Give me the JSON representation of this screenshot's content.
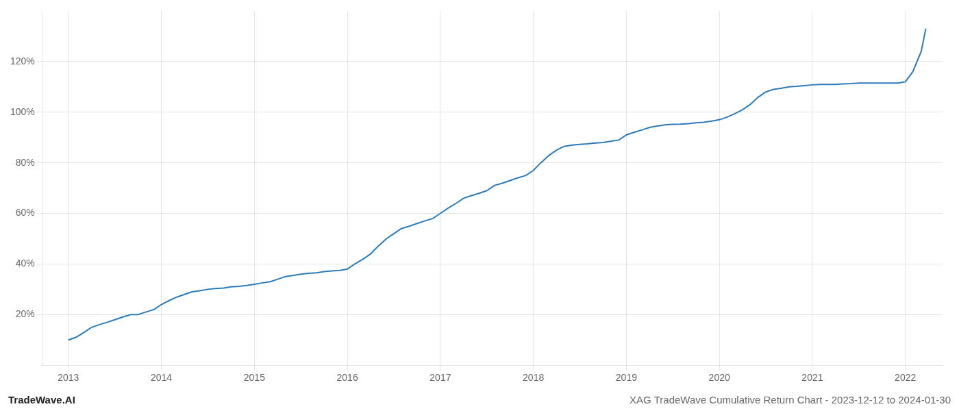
{
  "chart_data": {
    "type": "line",
    "title": "XAG TradeWave Cumulative Return Chart - 2023-12-12 to 2024-01-30",
    "annotations": [
      "TradeWave.AI"
    ],
    "x": [
      2013.0,
      2013.08,
      2013.17,
      2013.25,
      2013.33,
      2013.42,
      2013.5,
      2013.58,
      2013.67,
      2013.75,
      2013.83,
      2013.92,
      2014.0,
      2014.08,
      2014.17,
      2014.25,
      2014.33,
      2014.42,
      2014.5,
      2014.58,
      2014.67,
      2014.75,
      2014.83,
      2014.92,
      2015.0,
      2015.08,
      2015.17,
      2015.25,
      2015.33,
      2015.42,
      2015.5,
      2015.58,
      2015.67,
      2015.75,
      2015.83,
      2015.92,
      2016.0,
      2016.08,
      2016.17,
      2016.25,
      2016.33,
      2016.42,
      2016.5,
      2016.58,
      2016.67,
      2016.75,
      2016.83,
      2016.92,
      2017.0,
      2017.08,
      2017.17,
      2017.25,
      2017.33,
      2017.42,
      2017.5,
      2017.58,
      2017.67,
      2017.75,
      2017.83,
      2017.92,
      2018.0,
      2018.08,
      2018.17,
      2018.25,
      2018.33,
      2018.42,
      2018.5,
      2018.58,
      2018.67,
      2018.75,
      2018.83,
      2018.92,
      2019.0,
      2019.08,
      2019.17,
      2019.25,
      2019.33,
      2019.42,
      2019.5,
      2019.58,
      2019.67,
      2019.75,
      2019.83,
      2019.92,
      2020.0,
      2020.08,
      2020.17,
      2020.25,
      2020.33,
      2020.42,
      2020.5,
      2020.58,
      2020.67,
      2020.75,
      2020.83,
      2020.92,
      2021.0,
      2021.08,
      2021.17,
      2021.25,
      2021.33,
      2021.42,
      2021.5,
      2021.58,
      2021.67,
      2021.75,
      2021.83,
      2021.92,
      2022.0,
      2022.08,
      2022.17,
      2022.22
    ],
    "values": [
      10,
      11,
      13,
      15,
      16,
      17,
      18,
      19,
      20,
      20,
      21,
      22,
      24,
      25.5,
      27,
      28,
      29,
      29.5,
      30,
      30.3,
      30.5,
      31,
      31.2,
      31.5,
      32,
      32.5,
      33,
      34,
      35,
      35.5,
      36,
      36.3,
      36.5,
      37,
      37.3,
      37.5,
      38,
      40,
      42,
      44,
      47,
      50,
      52,
      54,
      55,
      56,
      57,
      58,
      60,
      62,
      64,
      66,
      67,
      68,
      69,
      71,
      72,
      73,
      74,
      75,
      77,
      80,
      83,
      85,
      86.5,
      87,
      87.3,
      87.5,
      87.8,
      88,
      88.5,
      89,
      91,
      92,
      93,
      94,
      94.5,
      95,
      95.2,
      95.3,
      95.5,
      95.8,
      96,
      96.5,
      97,
      98,
      99.5,
      101,
      103,
      106,
      108,
      109,
      109.5,
      110,
      110.2,
      110.5,
      110.8,
      111,
      111,
      111,
      111.2,
      111.3,
      111.5,
      111.5,
      111.5,
      111.5,
      111.5,
      111.5,
      112,
      116,
      124,
      133
    ],
    "color": "#2b7bba",
    "xlim": [
      2012.72,
      2022.4
    ],
    "xticks": [
      2013,
      2014,
      2015,
      2016,
      2017,
      2018,
      2019,
      2020,
      2021,
      2022
    ],
    "ylim": [
      0,
      140
    ],
    "yticks": [
      {
        "value": 20,
        "label": "20%"
      },
      {
        "value": 40,
        "label": "40%"
      },
      {
        "value": 60,
        "label": "60%"
      },
      {
        "value": 80,
        "label": "80%"
      },
      {
        "value": 100,
        "label": "100%"
      },
      {
        "value": 120,
        "label": "120%"
      }
    ],
    "grid": true
  }
}
